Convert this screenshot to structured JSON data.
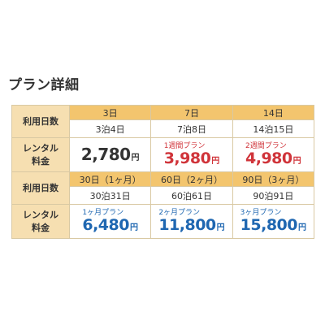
{
  "title": "プラン詳細",
  "labels": {
    "usage_days": "利用日数",
    "rental_fee_line1": "レンタル",
    "rental_fee_line2": "料金"
  },
  "colors": {
    "header_bg": "#f3c56e",
    "label_bg": "#f6dfb1",
    "red_price": "#d0343a",
    "blue_price": "#1f67b1",
    "border": "#d9c9a3"
  },
  "section1": {
    "headers": [
      "3日",
      "7日",
      "14日"
    ],
    "nights": [
      "3泊4日",
      "7泊8日",
      "14泊15日"
    ],
    "prices": [
      {
        "plan": "",
        "value": "2,780",
        "unit": "円"
      },
      {
        "plan": "1週間プラン",
        "value": "3,980",
        "unit": "円"
      },
      {
        "plan": "2週間プラン",
        "value": "4,980",
        "unit": "円"
      }
    ]
  },
  "section2": {
    "headers": [
      "30日（1ヶ月）",
      "60日（2ヶ月）",
      "90日（3ヶ月）"
    ],
    "nights": [
      "30泊31日",
      "60泊61日",
      "90泊91日"
    ],
    "prices": [
      {
        "plan": "1ヶ月プラン",
        "value": "6,480",
        "unit": "円"
      },
      {
        "plan": "2ヶ月プラン",
        "value": "11,800",
        "unit": "円"
      },
      {
        "plan": "3ヶ月プラン",
        "value": "15,800",
        "unit": "円"
      }
    ]
  }
}
